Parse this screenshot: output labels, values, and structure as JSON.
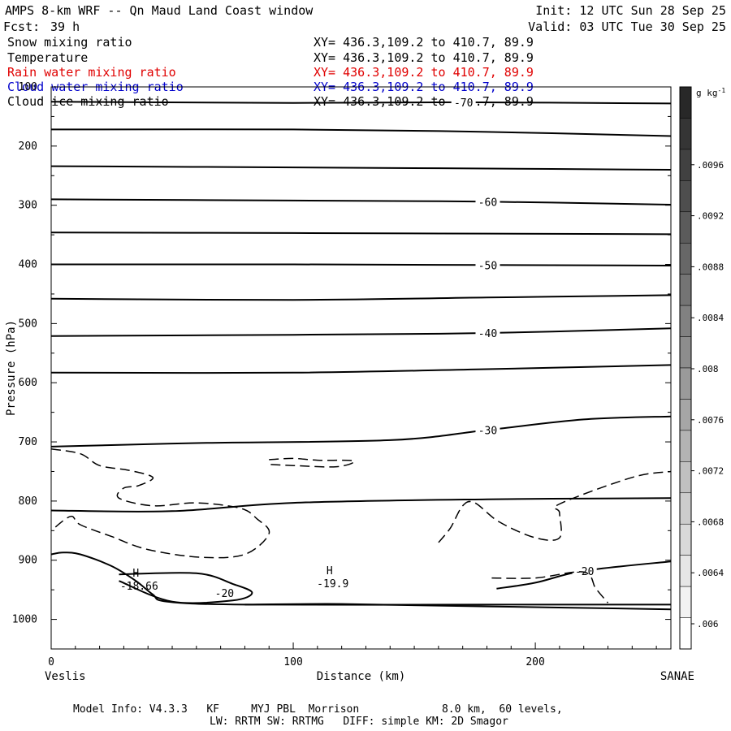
{
  "header": {
    "title": "AMPS 8-km WRF -- Qn Maud Land Coast window",
    "forecast_label": "Fcst:",
    "forecast_value": "39 h",
    "init": "Init: 12 UTC Sun 28 Sep 25",
    "valid": "Valid: 03 UTC Tue 30 Sep 25"
  },
  "fields": [
    {
      "name": "Snow mixing ratio",
      "xy": "XY= 436.3,109.2 to 410.7, 89.9",
      "color": "#000000"
    },
    {
      "name": "Temperature",
      "xy": "XY= 436.3,109.2 to 410.7, 89.9",
      "color": "#000000"
    },
    {
      "name": "Rain water mixing ratio",
      "xy": "XY= 436.3,109.2 to 410.7, 89.9",
      "color": "#e00000"
    },
    {
      "name": "Cloud water mixing ratio",
      "xy": "XY= 436.3,109.2 to 410.7, 89.9",
      "color": "#0000cc"
    },
    {
      "name": "Cloud ice mixing ratio",
      "xy": "XY= 436.3,109.2 to 410.7, 89.9",
      "color": "#000000"
    }
  ],
  "footer": {
    "line1": "Model Info: V4.3.3   KF     MYJ PBL  Morrison             8.0 km,  60 levels,",
    "line2": "LW: RRTM SW: RRTMG   DIFF: simple KM: 2D Smagor"
  },
  "chart_data": {
    "type": "contour",
    "xlabel": "Distance (km)",
    "ylabel": "Pressure (hPa)",
    "xlim": [
      0,
      256
    ],
    "ylim": [
      1050,
      100
    ],
    "x_ticks": [
      0,
      100,
      200
    ],
    "y_ticks": [
      100,
      200,
      300,
      400,
      500,
      600,
      700,
      800,
      900,
      1000
    ],
    "left_endpoint": "Veslis",
    "right_endpoint": "SANAE",
    "colorbar": {
      "unit": "g kg",
      "unit_exp": "-1",
      "ticks": [
        ".006",
        ".0064",
        ".0068",
        ".0072",
        ".0076",
        ".008",
        ".0084",
        ".0088",
        ".0092",
        ".0096"
      ]
    },
    "temperature_contours": [
      {
        "label": "-70",
        "points": [
          [
            0,
            125
          ],
          [
            100,
            127
          ],
          [
            170,
            126
          ],
          [
            256,
            128
          ]
        ]
      },
      {
        "label": "",
        "points": [
          [
            0,
            172
          ],
          [
            100,
            172
          ],
          [
            180,
            176
          ],
          [
            256,
            183
          ]
        ]
      },
      {
        "label": "",
        "points": [
          [
            0,
            234
          ],
          [
            100,
            236
          ],
          [
            180,
            238
          ],
          [
            256,
            240
          ]
        ]
      },
      {
        "label": "-60",
        "points": [
          [
            0,
            290
          ],
          [
            100,
            292
          ],
          [
            180,
            294
          ],
          [
            256,
            299
          ]
        ]
      },
      {
        "label": "",
        "points": [
          [
            0,
            346
          ],
          [
            100,
            347
          ],
          [
            180,
            348
          ],
          [
            256,
            349
          ]
        ]
      },
      {
        "label": "-50",
        "points": [
          [
            0,
            400
          ],
          [
            100,
            400
          ],
          [
            180,
            401
          ],
          [
            256,
            402
          ]
        ]
      },
      {
        "label": "",
        "points": [
          [
            0,
            458
          ],
          [
            100,
            460
          ],
          [
            180,
            456
          ],
          [
            256,
            452
          ]
        ]
      },
      {
        "label": "-40",
        "points": [
          [
            0,
            521
          ],
          [
            100,
            519
          ],
          [
            180,
            516
          ],
          [
            256,
            508
          ]
        ]
      },
      {
        "label": "",
        "points": [
          [
            0,
            583
          ],
          [
            100,
            583
          ],
          [
            180,
            577
          ],
          [
            256,
            570
          ]
        ]
      },
      {
        "label": "-30",
        "points": [
          [
            0,
            708
          ],
          [
            60,
            702
          ],
          [
            140,
            697
          ],
          [
            180,
            680
          ],
          [
            220,
            662
          ],
          [
            256,
            657
          ]
        ]
      },
      {
        "label": "",
        "points": [
          [
            0,
            816
          ],
          [
            50,
            817
          ],
          [
            100,
            803
          ],
          [
            180,
            797
          ],
          [
            256,
            795
          ]
        ]
      },
      {
        "label": "-20",
        "points": [
          [
            28,
            924
          ],
          [
            60,
            922
          ],
          [
            75,
            940
          ],
          [
            83,
            955
          ],
          [
            75,
            968
          ],
          [
            50,
            970
          ],
          [
            28,
            935
          ]
        ]
      },
      {
        "label": "",
        "points": [
          [
            0,
            890
          ],
          [
            5,
            887
          ],
          [
            12,
            890
          ],
          [
            25,
            910
          ],
          [
            35,
            935
          ],
          [
            42,
            958
          ],
          [
            48,
            970
          ],
          [
            80,
            975
          ],
          [
            180,
            975
          ],
          [
            256,
            975
          ]
        ]
      },
      {
        "label": "-20",
        "points": [
          [
            184,
            948
          ],
          [
            200,
            938
          ],
          [
            220,
            918
          ],
          [
            256,
            902
          ]
        ]
      },
      {
        "label": "",
        "points": [
          [
            80,
            975
          ],
          [
            120,
            974
          ],
          [
            180,
            978
          ],
          [
            256,
            983
          ]
        ]
      }
    ],
    "cloud_ice_contours": [
      {
        "label": "",
        "points": [
          [
            0,
            712
          ],
          [
            12,
            720
          ],
          [
            20,
            740
          ],
          [
            32,
            748
          ],
          [
            42,
            760
          ],
          [
            36,
            774
          ],
          [
            30,
            778
          ],
          [
            28,
            795
          ],
          [
            42,
            808
          ],
          [
            60,
            803
          ],
          [
            78,
            812
          ],
          [
            85,
            830
          ],
          [
            90,
            855
          ],
          [
            80,
            890
          ],
          [
            62,
            895
          ],
          [
            40,
            882
          ],
          [
            25,
            860
          ],
          [
            12,
            840
          ],
          [
            8,
            826
          ],
          [
            0,
            850
          ]
        ]
      },
      {
        "label": "",
        "points": [
          [
            90,
            730
          ],
          [
            100,
            728
          ],
          [
            110,
            731
          ],
          [
            125,
            732
          ],
          [
            118,
            742
          ],
          [
            100,
            740
          ],
          [
            90,
            738
          ]
        ]
      },
      {
        "label": "",
        "points": [
          [
            160,
            870
          ],
          [
            165,
            845
          ],
          [
            170,
            808
          ],
          [
            175,
            803
          ],
          [
            185,
            835
          ],
          [
            200,
            862
          ],
          [
            210,
            862
          ],
          [
            210,
            820
          ],
          [
            210,
            805
          ],
          [
            240,
            760
          ],
          [
            256,
            750
          ]
        ]
      },
      {
        "label": "",
        "points": [
          [
            182,
            930
          ],
          [
            200,
            930
          ],
          [
            220,
            920
          ],
          [
            225,
            948
          ],
          [
            230,
            972
          ]
        ]
      }
    ],
    "annotations": [
      {
        "symbol": "H",
        "value": "-18.66",
        "x": 35,
        "p": 947
      },
      {
        "symbol": "H",
        "value": "-19.9",
        "x": 115,
        "p": 943
      }
    ]
  }
}
